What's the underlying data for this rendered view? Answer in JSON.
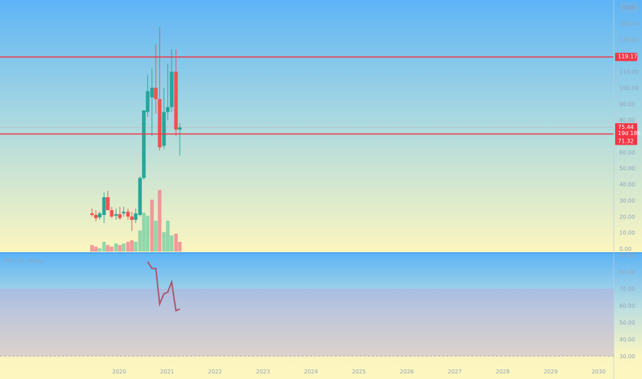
{
  "currency": "USD",
  "rsi_label": "RSI (14, close)",
  "colors": {
    "up": "#26a69a",
    "down": "#ef5350",
    "vol_up": "#7fd1a6",
    "vol_down": "#f08a93",
    "hline": "#f23645",
    "rsi_line": "#b0506a",
    "price_tag": "#f23645",
    "divider": "#4aa3f5"
  },
  "price_labels": {
    "top_line": "119.17",
    "current": "75.44",
    "countdown": "19d 18h",
    "bottom_line": "71.32"
  },
  "chart_data": [
    {
      "type": "candlestick",
      "price_axis_ticks": [
        "150.00",
        "140.00",
        "130.00",
        "120.00",
        "110.00",
        "100.00",
        "90.00",
        "80.00",
        "70.00",
        "60.00",
        "50.00",
        "40.00",
        "30.00",
        "20.00",
        "10.00",
        "0.00"
      ],
      "ylim": [
        0,
        152
      ],
      "horizontal_lines": [
        119.17,
        71.32
      ],
      "current_price": 75.44,
      "candles": [
        {
          "t": 2019.42,
          "o": 22,
          "h": 25,
          "l": 20,
          "c": 21
        },
        {
          "t": 2019.5,
          "o": 21,
          "h": 24,
          "l": 17,
          "c": 19
        },
        {
          "t": 2019.58,
          "o": 19.5,
          "h": 23,
          "l": 18,
          "c": 22
        },
        {
          "t": 2019.67,
          "o": 21,
          "h": 35,
          "l": 16,
          "c": 32
        },
        {
          "t": 2019.75,
          "o": 32,
          "h": 36,
          "l": 24,
          "c": 24
        },
        {
          "t": 2019.83,
          "o": 24,
          "h": 26,
          "l": 19,
          "c": 20
        },
        {
          "t": 2019.92,
          "o": 20.5,
          "h": 25,
          "l": 18,
          "c": 21.5
        },
        {
          "t": 2020.0,
          "o": 21.5,
          "h": 26,
          "l": 18,
          "c": 19
        },
        {
          "t": 2020.08,
          "o": 22,
          "h": 26,
          "l": 20,
          "c": 23
        },
        {
          "t": 2020.17,
          "o": 23,
          "h": 25,
          "l": 18,
          "c": 20
        },
        {
          "t": 2020.25,
          "o": 20,
          "h": 23,
          "l": 11,
          "c": 18
        },
        {
          "t": 2020.33,
          "o": 18,
          "h": 25,
          "l": 16,
          "c": 22
        },
        {
          "t": 2020.42,
          "o": 21,
          "h": 45,
          "l": 20,
          "c": 44
        },
        {
          "t": 2020.5,
          "o": 44,
          "h": 86,
          "l": 43,
          "c": 86
        },
        {
          "t": 2020.58,
          "o": 85,
          "h": 108,
          "l": 82,
          "c": 98
        },
        {
          "t": 2020.67,
          "o": 94,
          "h": 112,
          "l": 70,
          "c": 100
        },
        {
          "t": 2020.75,
          "o": 100,
          "h": 127,
          "l": 84,
          "c": 93
        },
        {
          "t": 2020.83,
          "o": 93,
          "h": 138,
          "l": 61,
          "c": 63
        },
        {
          "t": 2020.92,
          "o": 64,
          "h": 100,
          "l": 62,
          "c": 85
        },
        {
          "t": 2021.0,
          "o": 85,
          "h": 115,
          "l": 80,
          "c": 88
        },
        {
          "t": 2021.08,
          "o": 88,
          "h": 124,
          "l": 85,
          "c": 110
        },
        {
          "t": 2021.17,
          "o": 110,
          "h": 124,
          "l": 70,
          "c": 74
        },
        {
          "t": 2021.25,
          "o": 74,
          "h": 78,
          "l": 58,
          "c": 75.44
        }
      ],
      "volume": [
        {
          "t": 2019.42,
          "v": 4,
          "dir": "down"
        },
        {
          "t": 2019.5,
          "v": 3,
          "dir": "down"
        },
        {
          "t": 2019.58,
          "v": 2,
          "dir": "up"
        },
        {
          "t": 2019.67,
          "v": 6,
          "dir": "up"
        },
        {
          "t": 2019.75,
          "v": 4,
          "dir": "down"
        },
        {
          "t": 2019.83,
          "v": 3,
          "dir": "down"
        },
        {
          "t": 2019.92,
          "v": 5,
          "dir": "up"
        },
        {
          "t": 2020.0,
          "v": 4,
          "dir": "down"
        },
        {
          "t": 2020.08,
          "v": 5,
          "dir": "up"
        },
        {
          "t": 2020.17,
          "v": 6,
          "dir": "down"
        },
        {
          "t": 2020.25,
          "v": 7,
          "dir": "down"
        },
        {
          "t": 2020.33,
          "v": 6,
          "dir": "up"
        },
        {
          "t": 2020.42,
          "v": 13,
          "dir": "up"
        },
        {
          "t": 2020.5,
          "v": 24,
          "dir": "up"
        },
        {
          "t": 2020.58,
          "v": 22,
          "dir": "up"
        },
        {
          "t": 2020.67,
          "v": 32,
          "dir": "down"
        },
        {
          "t": 2020.75,
          "v": 19,
          "dir": "up"
        },
        {
          "t": 2020.83,
          "v": 38,
          "dir": "down"
        },
        {
          "t": 2020.92,
          "v": 12,
          "dir": "up"
        },
        {
          "t": 2021.0,
          "v": 19,
          "dir": "up"
        },
        {
          "t": 2021.08,
          "v": 10,
          "dir": "up"
        },
        {
          "t": 2021.17,
          "v": 11,
          "dir": "down"
        },
        {
          "t": 2021.25,
          "v": 6,
          "dir": "down"
        }
      ]
    },
    {
      "type": "line",
      "series": [
        {
          "x": [
            2020.58,
            2020.67,
            2020.75,
            2020.83,
            2020.92,
            2021.0,
            2021.08,
            2021.17,
            2021.25
          ],
          "values": [
            86,
            82,
            82,
            61,
            67,
            68,
            74,
            57,
            58
          ]
        }
      ],
      "ylim": [
        30,
        90
      ],
      "axis_ticks": [
        "90.00",
        "80.00",
        "70.00",
        "60.00",
        "50.00",
        "40.00",
        "30.00"
      ],
      "bands": [
        70,
        30
      ]
    }
  ],
  "time_axis": {
    "labels": [
      "2020",
      "2021",
      "2022",
      "2023",
      "2024",
      "2025",
      "2026",
      "2027",
      "2028",
      "2029",
      "2030"
    ],
    "values": [
      2020,
      2021,
      2022,
      2023,
      2024,
      2025,
      2026,
      2027,
      2028,
      2029,
      2030
    ]
  }
}
